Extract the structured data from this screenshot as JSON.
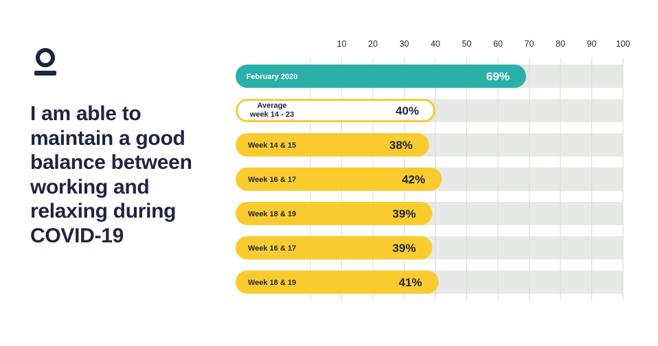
{
  "brand": {
    "logo_icon": "person-logo-icon",
    "color": "#1f2440"
  },
  "title": "I am able to maintain a good balance between working and relaxing during COVID-19",
  "colors": {
    "teal": "#2bb0a9",
    "yellow": "#f9cb2f",
    "track": "#e7e9e6",
    "text": "#1f2440",
    "white": "#ffffff"
  },
  "chart_data": {
    "type": "bar",
    "orientation": "horizontal",
    "title": "I am able to maintain a good balance between working and relaxing during COVID-19",
    "x_axis": {
      "ticks": [
        10,
        20,
        30,
        40,
        50,
        60,
        70,
        80,
        90,
        100
      ],
      "range": [
        0,
        100
      ],
      "position": "top",
      "grid": true
    },
    "bars": [
      {
        "category": [
          "February 2020"
        ],
        "value": 69,
        "label": "69%",
        "style": "teal"
      },
      {
        "category": [
          "Average",
          "week 14 - 23"
        ],
        "value": 40,
        "label": "40%",
        "style": "outline"
      },
      {
        "category": [
          "Week 14 & 15"
        ],
        "value": 38,
        "label": "38%",
        "style": "yellow"
      },
      {
        "category": [
          "Week 16 & 17"
        ],
        "value": 42,
        "label": "42%",
        "style": "yellow"
      },
      {
        "category": [
          "Week 18 & 19"
        ],
        "value": 39,
        "label": "39%",
        "style": "yellow"
      },
      {
        "category": [
          "Week 16 & 17"
        ],
        "value": 39,
        "label": "39%",
        "style": "yellow"
      },
      {
        "category": [
          "Week 18 & 19"
        ],
        "value": 41,
        "label": "41%",
        "style": "yellow"
      }
    ]
  }
}
